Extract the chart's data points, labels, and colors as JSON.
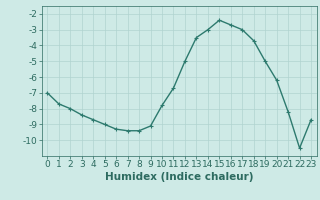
{
  "x": [
    0,
    1,
    2,
    3,
    4,
    5,
    6,
    7,
    8,
    9,
    10,
    11,
    12,
    13,
    14,
    15,
    16,
    17,
    18,
    19,
    20,
    21,
    22,
    23
  ],
  "y": [
    -7.0,
    -7.7,
    -8.0,
    -8.4,
    -8.7,
    -9.0,
    -9.3,
    -9.4,
    -9.4,
    -9.1,
    -7.8,
    -6.7,
    -5.0,
    -3.5,
    -3.0,
    -2.4,
    -2.7,
    -3.0,
    -3.7,
    -5.0,
    -6.2,
    -8.2,
    -10.5,
    -8.7
  ],
  "line_color": "#2d7a6e",
  "marker": "+",
  "marker_size": 3,
  "marker_linewidth": 0.8,
  "xlabel": "Humidex (Indice chaleur)",
  "xlim": [
    -0.5,
    23.5
  ],
  "ylim": [
    -11.0,
    -1.5
  ],
  "yticks": [
    -10,
    -9,
    -8,
    -7,
    -6,
    -5,
    -4,
    -3,
    -2
  ],
  "xticks": [
    0,
    1,
    2,
    3,
    4,
    5,
    6,
    7,
    8,
    9,
    10,
    11,
    12,
    13,
    14,
    15,
    16,
    17,
    18,
    19,
    20,
    21,
    22,
    23
  ],
  "bg_color": "#ceeae6",
  "grid_color": "#b0d4d0",
  "font_color": "#2d6b60",
  "tick_fontsize": 6.5,
  "xlabel_fontsize": 7.5,
  "linewidth": 1.0
}
